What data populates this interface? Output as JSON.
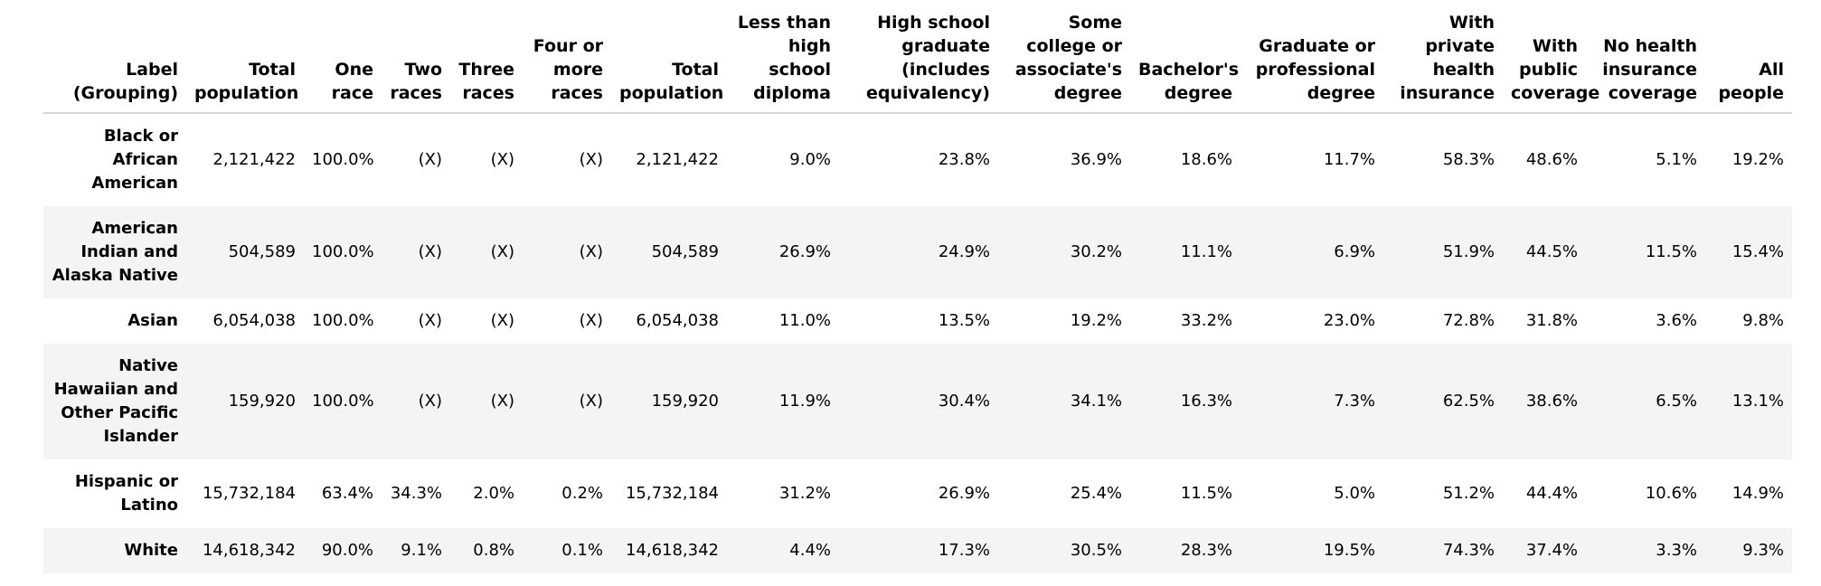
{
  "table": {
    "columns": [
      "Label\n(Grouping)",
      "Total population",
      "One race",
      "Two races",
      "Three races",
      "Four or more races",
      "Total population",
      "Less than high school diploma",
      "High school graduate (includes equivalency)",
      "Some college or associate's degree",
      "Bachelor's degree",
      "Graduate or professional degree",
      "With private health insurance",
      "With public coverage",
      "No health insurance coverage",
      "All people"
    ],
    "rows": [
      {
        "label": "Black or African American",
        "cells": [
          "2,121,422",
          "100.0%",
          "(X)",
          "(X)",
          "(X)",
          "2,121,422",
          "9.0%",
          "23.8%",
          "36.9%",
          "18.6%",
          "11.7%",
          "58.3%",
          "48.6%",
          "5.1%",
          "19.2%"
        ]
      },
      {
        "label": "American Indian and Alaska Native",
        "cells": [
          "504,589",
          "100.0%",
          "(X)",
          "(X)",
          "(X)",
          "504,589",
          "26.9%",
          "24.9%",
          "30.2%",
          "11.1%",
          "6.9%",
          "51.9%",
          "44.5%",
          "11.5%",
          "15.4%"
        ]
      },
      {
        "label": "Asian",
        "cells": [
          "6,054,038",
          "100.0%",
          "(X)",
          "(X)",
          "(X)",
          "6,054,038",
          "11.0%",
          "13.5%",
          "19.2%",
          "33.2%",
          "23.0%",
          "72.8%",
          "31.8%",
          "3.6%",
          "9.8%"
        ]
      },
      {
        "label": "Native Hawaiian and Other Pacific Islander",
        "cells": [
          "159,920",
          "100.0%",
          "(X)",
          "(X)",
          "(X)",
          "159,920",
          "11.9%",
          "30.4%",
          "34.1%",
          "16.3%",
          "7.3%",
          "62.5%",
          "38.6%",
          "6.5%",
          "13.1%"
        ]
      },
      {
        "label": "Hispanic or Latino",
        "cells": [
          "15,732,184",
          "63.4%",
          "34.3%",
          "2.0%",
          "0.2%",
          "15,732,184",
          "31.2%",
          "26.9%",
          "25.4%",
          "11.5%",
          "5.0%",
          "51.2%",
          "44.4%",
          "10.6%",
          "14.9%"
        ]
      },
      {
        "label": "White",
        "cells": [
          "14,618,342",
          "90.0%",
          "9.1%",
          "0.8%",
          "0.1%",
          "14,618,342",
          "4.4%",
          "17.3%",
          "30.5%",
          "28.3%",
          "19.5%",
          "74.3%",
          "37.4%",
          "3.3%",
          "9.3%"
        ]
      }
    ]
  }
}
